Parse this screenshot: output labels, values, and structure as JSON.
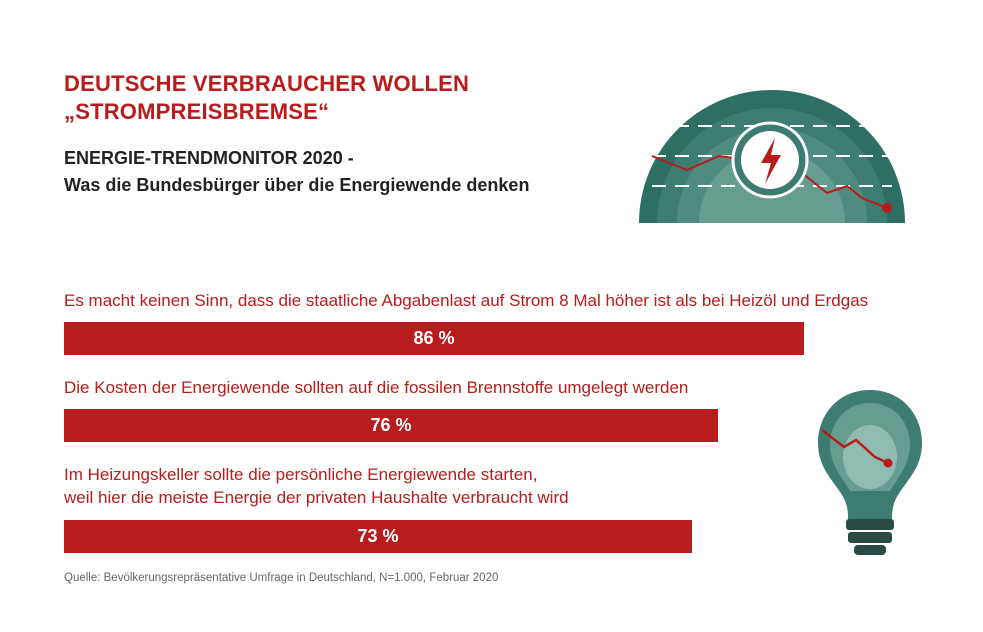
{
  "header": {
    "title_line1": "DEUTSCHE VERBRAUCHER WOLLEN",
    "title_line2": "„STROMPREISBREMSE“",
    "subtitle_line1": "ENERGIE-TRENDMONITOR 2020 -",
    "subtitle_line2": "Was die Bundesbürger über die Energiewende denken"
  },
  "chart_data": {
    "type": "bar",
    "orientation": "horizontal",
    "unit": "%",
    "categories": [
      "Es macht keinen Sinn, dass die staatliche Abgabenlast auf Strom 8 Mal höher ist als bei Heizöl und Erdgas",
      "Die Kosten der Energiewende sollten auf die fossilen Brennstoffe umgelegt werden",
      "Im Heizungskeller sollte die persönliche Energiewende starten, weil hier die meiste Energie der privaten Haushalte verbraucht wird"
    ],
    "values": [
      86,
      76,
      73
    ],
    "value_labels": [
      "86 %",
      "76 %",
      "73 %"
    ],
    "xlim": [
      0,
      100
    ],
    "grid": false,
    "legend": "none",
    "bar_color": "#b81c1c"
  },
  "items": [
    {
      "label_lines": [
        "Es macht keinen Sinn, dass die staatliche Abgabenlast auf Strom 8 Mal höher ist als bei Heizöl und Erdgas"
      ]
    },
    {
      "label_lines": [
        "Die Kosten der Energiewende sollten auf die fossilen Brennstoffe umgelegt werden"
      ]
    },
    {
      "label_lines": [
        "Im Heizungskeller sollte die persönliche Energiewende starten,",
        "weil hier die meiste Energie der privaten Haushalte verbraucht wird"
      ]
    }
  ],
  "footer": {
    "source": "Quelle: Bevölkerungsrepräsentative Umfrage in Deutschland, N=1.000, Februar 2020"
  },
  "colors": {
    "accent_red": "#b81c1c",
    "teal_dark": "#2e6f64",
    "teal_mid": "#4f8c80",
    "teal_light": "#7eb0a5"
  },
  "icons": [
    "energy-gauge-icon",
    "light-bulb-icon"
  ]
}
